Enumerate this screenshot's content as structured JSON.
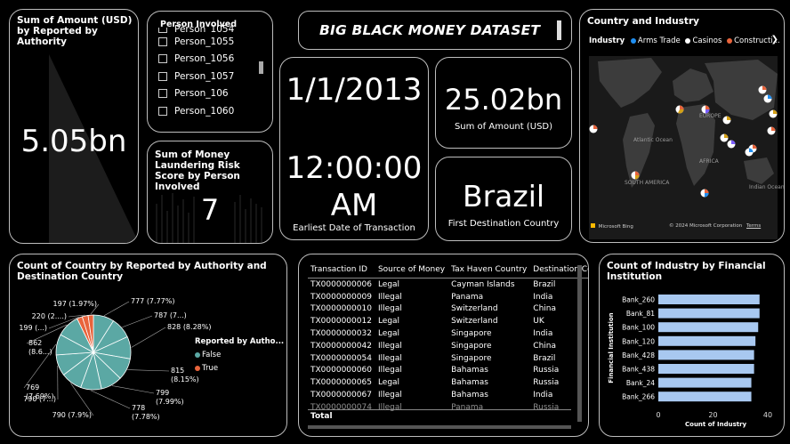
{
  "cards": {
    "sum_by_authority": {
      "title": "Sum of Amount (USD) by Reported by Authority",
      "value": "5.05bn"
    },
    "person_slicer": {
      "title": "Person Involved",
      "items": [
        "Person_1054",
        "Person_1055",
        "Person_1056",
        "Person_1057",
        "Person_106",
        "Person_1060"
      ]
    },
    "risk_score": {
      "title": "Sum of Money Laundering Risk Score by Person Involved",
      "value": "7"
    },
    "dataset_title": "BIG BLACK MONEY DATASET",
    "earliest_date": {
      "date": "1/1/2013",
      "time_line1": "12:00:00",
      "time_line2": "AM",
      "caption": "Earliest Date of Transaction"
    },
    "total_amount": {
      "value": "25.02bn",
      "caption": "Sum of Amount (USD)"
    },
    "first_destination": {
      "value": "Brazil",
      "caption": "First Destination Country"
    },
    "map": {
      "title": "Country and Industry",
      "legend_label": "Industry",
      "legend_items": [
        {
          "label": "Arms Trade",
          "color": "#1f8ef1"
        },
        {
          "label": "Casinos",
          "color": "#ffffff"
        },
        {
          "label": "Constructi...",
          "color": "#e8643c"
        }
      ],
      "labels": {
        "europe": "EUROPE",
        "atlantic": "Atlantic Ocean",
        "africa": "AFRICA",
        "south_america": "SOUTH AMERICA",
        "indian": "Indian Ocean"
      },
      "credit_bing": "Microsoft Bing",
      "credit_copy": "© 2024 Microsoft Corporation",
      "credit_terms": "Terms"
    },
    "table": {
      "columns": [
        "Transaction ID",
        "Source of Money",
        "Tax Haven Country",
        "Destination Coun"
      ],
      "rows": [
        [
          "TX0000000006",
          "Legal",
          "Cayman Islands",
          "Brazil"
        ],
        [
          "TX0000000009",
          "Illegal",
          "Panama",
          "India"
        ],
        [
          "TX0000000010",
          "Illegal",
          "Switzerland",
          "China"
        ],
        [
          "TX0000000012",
          "Legal",
          "Switzerland",
          "UK"
        ],
        [
          "TX0000000032",
          "Legal",
          "Singapore",
          "India"
        ],
        [
          "TX0000000042",
          "Illegal",
          "Singapore",
          "China"
        ],
        [
          "TX0000000054",
          "Illegal",
          "Singapore",
          "Brazil"
        ],
        [
          "TX0000000060",
          "Illegal",
          "Bahamas",
          "Russia"
        ],
        [
          "TX0000000065",
          "Legal",
          "Bahamas",
          "Russia"
        ],
        [
          "TX0000000067",
          "Illegal",
          "Bahamas",
          "India"
        ],
        [
          "TX0000000074",
          "Illegal",
          "Panama",
          "Russia"
        ]
      ],
      "total_label": "Total"
    },
    "pie": {
      "title": "Count of Country by Reported by Authority and Destination Country",
      "legend_title": "Reported by Autho...",
      "legend_items": [
        {
          "label": "False",
          "color": "#5ba8a4"
        },
        {
          "label": "True",
          "color": "#e8643c"
        }
      ]
    },
    "bar": {
      "title": "Count of Industry by Financial Institution",
      "ylabel": "Financial Institution",
      "xlabel": "Count of Industry"
    }
  },
  "chart_data": [
    {
      "type": "pie",
      "title": "Count of Country by Reported by Authority and Destination Country",
      "slices": [
        {
          "label": "777 (7.77%)",
          "value": 777,
          "group": "False"
        },
        {
          "label": "787 (7...)",
          "value": 787,
          "group": "False"
        },
        {
          "label": "828 (8.28%)",
          "value": 828,
          "group": "False"
        },
        {
          "label": "815 (8.15%)",
          "value": 815,
          "group": "False"
        },
        {
          "label": "799 (7.99%)",
          "value": 799,
          "group": "False"
        },
        {
          "label": "778 (7.78%)",
          "value": 778,
          "group": "False"
        },
        {
          "label": "790 (7.9%)",
          "value": 790,
          "group": "False"
        },
        {
          "label": "790 (7...)",
          "value": 790,
          "group": "False"
        },
        {
          "label": "769 (7.69%)",
          "value": 769,
          "group": "False"
        },
        {
          "label": "862 (8.6...)",
          "value": 862,
          "group": "False"
        },
        {
          "label": "199 (...)",
          "value": 199,
          "group": "True"
        },
        {
          "label": "220 (2....)",
          "value": 220,
          "group": "True"
        },
        {
          "label": "197 (1.97%)",
          "value": 197,
          "group": "True"
        }
      ],
      "colors": {
        "False": "#5ba8a4",
        "True": "#e8643c"
      }
    },
    {
      "type": "bar",
      "orientation": "horizontal",
      "title": "Count of Industry by Financial Institution",
      "categories": [
        "Bank_260",
        "Bank_81",
        "Bank_100",
        "Bank_120",
        "Bank_428",
        "Bank_438",
        "Bank_24",
        "Bank_266"
      ],
      "values": [
        37,
        37,
        36.5,
        35.5,
        35,
        35,
        34,
        34
      ],
      "xlim": [
        0,
        40
      ],
      "xticks": [
        0,
        20,
        40
      ],
      "xlabel": "Count of Industry",
      "ylabel": "Financial Institution",
      "color": "#a8c8f0"
    }
  ]
}
